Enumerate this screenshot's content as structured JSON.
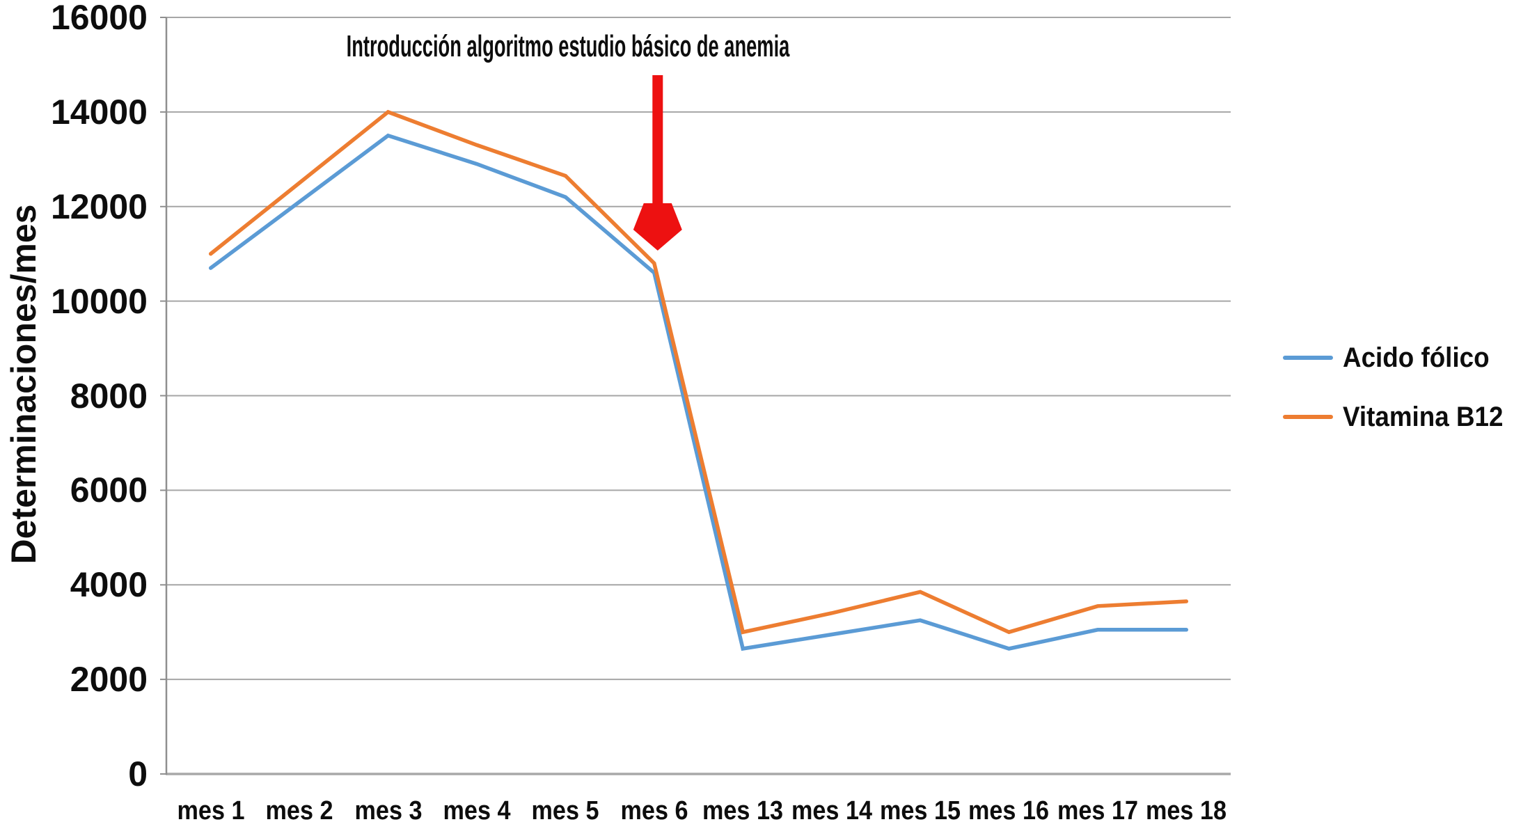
{
  "chart_data": {
    "type": "line",
    "title": "",
    "ylabel": "Determinaciones/mes",
    "xlabel": "",
    "ylim": [
      0,
      16000
    ],
    "ytick_step": 2000,
    "yticks": [
      0,
      2000,
      4000,
      6000,
      8000,
      10000,
      12000,
      14000,
      16000
    ],
    "grid": "horizontal gridlines only",
    "legend_position": "right",
    "categories": [
      "mes 1",
      "mes 2",
      "mes 3",
      "mes 4",
      "mes 5",
      "mes 6",
      "mes 13",
      "mes 14",
      "mes 15",
      "mes 16",
      "mes 17",
      "mes 18"
    ],
    "series": [
      {
        "name": "Acido fólico",
        "color": "#5B9BD5",
        "values": [
          10700,
          12100,
          13500,
          12900,
          12200,
          10600,
          2650,
          2950,
          3250,
          2650,
          3050,
          3050
        ]
      },
      {
        "name": "Vitamina B12",
        "color": "#ED7D31",
        "values": [
          11000,
          12500,
          14000,
          13300,
          12650,
          10800,
          3000,
          3400,
          3850,
          3000,
          3550,
          3650
        ]
      }
    ],
    "annotation": {
      "text": "Introducción algoritmo estudio básico de anemia",
      "arrow_direction": "down",
      "arrow_color": "#ED1111",
      "arrow_target_category": "mes 6"
    }
  },
  "colors": {
    "background": "#FFFFFF",
    "gridline": "#A6A6A6",
    "axis": "#8F8F8F",
    "text": "#0D0D0D"
  }
}
